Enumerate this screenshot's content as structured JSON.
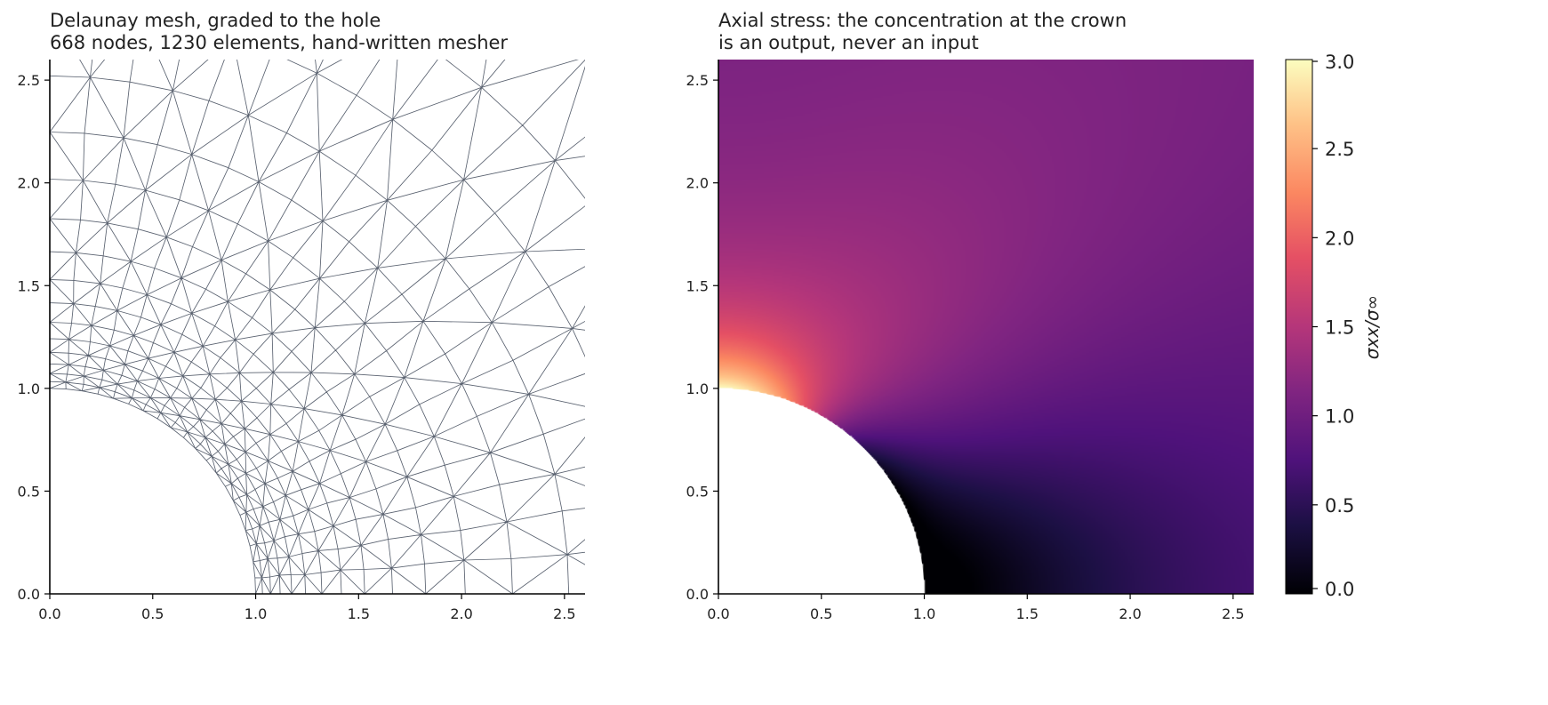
{
  "chart_data": [
    {
      "type": "mesh",
      "title_line1": "Delaunay mesh, graded to the hole",
      "title_line2": "668 nodes, 1230 elements, hand-written mesher",
      "xlim": [
        0,
        2.6
      ],
      "ylim": [
        0,
        2.6
      ],
      "xticks": [
        "0.0",
        "0.5",
        "1.0",
        "1.5",
        "2.0",
        "2.5"
      ],
      "yticks": [
        "0.0",
        "0.5",
        "1.0",
        "1.5",
        "2.0",
        "2.5"
      ],
      "hole_radius": 1.0,
      "nodes": 668,
      "elements": 1230,
      "edge_color": "#5a6270"
    },
    {
      "type": "heatmap",
      "title_line1": "Axial stress: the concentration at the crown",
      "title_line2": "is an output, never an input",
      "xlim": [
        0,
        2.6
      ],
      "ylim": [
        0,
        2.6
      ],
      "xticks": [
        "0.0",
        "0.5",
        "1.0",
        "1.5",
        "2.0",
        "2.5"
      ],
      "yticks": [
        "0.0",
        "0.5",
        "1.0",
        "1.5",
        "2.0",
        "2.5"
      ],
      "hole_radius": 1.0,
      "colormap": "magma",
      "colorbar_label": "σxx/σ∞",
      "colorbar_range": [
        0,
        3
      ],
      "colorbar_ticks": [
        "0.0",
        "0.5",
        "1.0",
        "1.5",
        "2.0",
        "2.5",
        "3.0"
      ],
      "crown_value": 3.0,
      "far_field_value": 1.0
    }
  ]
}
